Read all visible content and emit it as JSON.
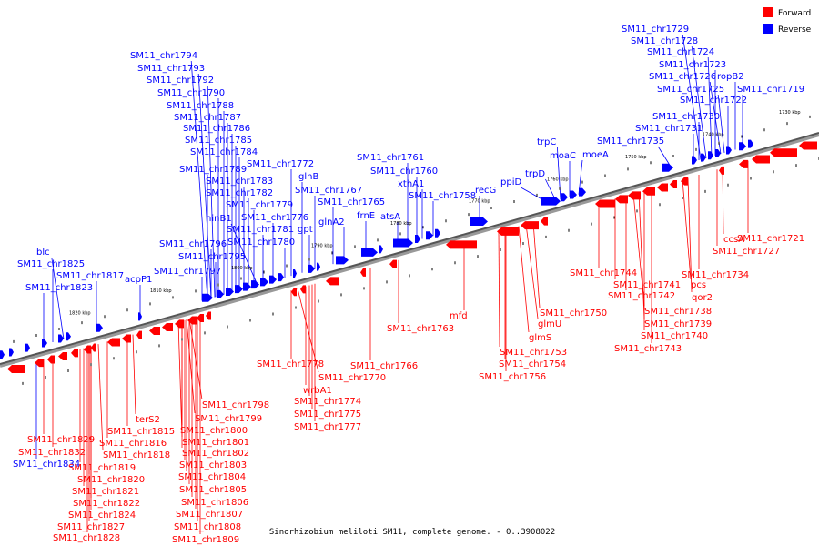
{
  "caption": "Sinorhizobium meliloti SM11, complete genome. - 0..3908022",
  "legend": [
    {
      "name": "Forward",
      "color": "#ff0000"
    },
    {
      "name": "Reverse",
      "color": "#0000ff"
    }
  ],
  "colors": {
    "forward": "#ff0000",
    "reverse": "#0000ff",
    "backbone": "#777777"
  },
  "ticks": [
    "1820 kbp",
    "1810 kbp",
    "1800 kbp",
    "1790 kbp",
    "1780 kbp",
    "1770 kbp",
    "1760 kbp",
    "1750 kbp",
    "1740 kbp",
    "1730 kbp"
  ],
  "reverse_labels": [
    "SM11_chr1794",
    "SM11_chr1793",
    "SM11_chr1792",
    "SM11_chr1790",
    "SM11_chr1788",
    "SM11_chr1787",
    "SM11_chr1786",
    "SM11_chr1785",
    "SM11_chr1784",
    "SM11_chr1789",
    "SM11_chr1783",
    "SM11_chr1782",
    "SM11_chr1779",
    "ninB1",
    "SM11_chr1781",
    "SM11_chr1796",
    "SM11_chr1795",
    "SM11_chr1797",
    "SM11_chr1776",
    "SM11_chr1780",
    "SM11_chr1772",
    "glnB",
    "SM11_chr1767",
    "gpt",
    "glnA2",
    "SM11_chr1765",
    "frnE",
    "atsA",
    "SM11_chr1761",
    "SM11_chr1760",
    "xthA1",
    "SM11_chr1758",
    "recG",
    "ppiD",
    "trpD",
    "trpC",
    "moaC",
    "moeA",
    "SM11_chr1735",
    "SM11_chr1729",
    "SM11_chr1728",
    "SM11_chr1724",
    "SM11_chr1723",
    "SM11_chr1726",
    "ropB2",
    "SM11_chr1725",
    "SM11_chr1722",
    "SM11_chr1719",
    "SM11_chr1730",
    "SM11_chr1731",
    "blc",
    "SM11_chr1825",
    "SM11_chr1817",
    "SM11_chr1823",
    "acpP1",
    "SM11_chr1834"
  ],
  "forward_labels": [
    "SM11_chr1829",
    "SM11_chr1832",
    "SM11_chr1816",
    "SM11_chr1818",
    "SM11_chr1819",
    "SM11_chr1820",
    "SM11_chr1821",
    "SM11_chr1822",
    "SM11_chr1824",
    "SM11_chr1827",
    "SM11_chr1828",
    "terS2",
    "SM11_chr1815",
    "SM11_chr1798",
    "SM11_chr1799",
    "SM11_chr1800",
    "SM11_chr1801",
    "SM11_chr1802",
    "SM11_chr1803",
    "SM11_chr1804",
    "SM11_chr1805",
    "SM11_chr1806",
    "SM11_chr1807",
    "SM11_chr1808",
    "SM11_chr1809",
    "SM11_chr1778",
    "SM11_chr1770",
    "wrbA1",
    "SM11_chr1774",
    "SM11_chr1775",
    "SM11_chr1777",
    "SM11_chr1766",
    "SM11_chr1763",
    "mfd",
    "SM11_chr1753",
    "SM11_chr1754",
    "SM11_chr1756",
    "glmS",
    "glmU",
    "SM11_chr1750",
    "SM11_chr1744",
    "SM11_chr1741",
    "SM11_chr1742",
    "SM11_chr1738",
    "SM11_chr1739",
    "SM11_chr1740",
    "SM11_chr1743",
    "pcs",
    "qor2",
    "SM11_chr1734",
    "SM11_chr1727",
    "ccsA",
    "SM11_chr1721"
  ]
}
